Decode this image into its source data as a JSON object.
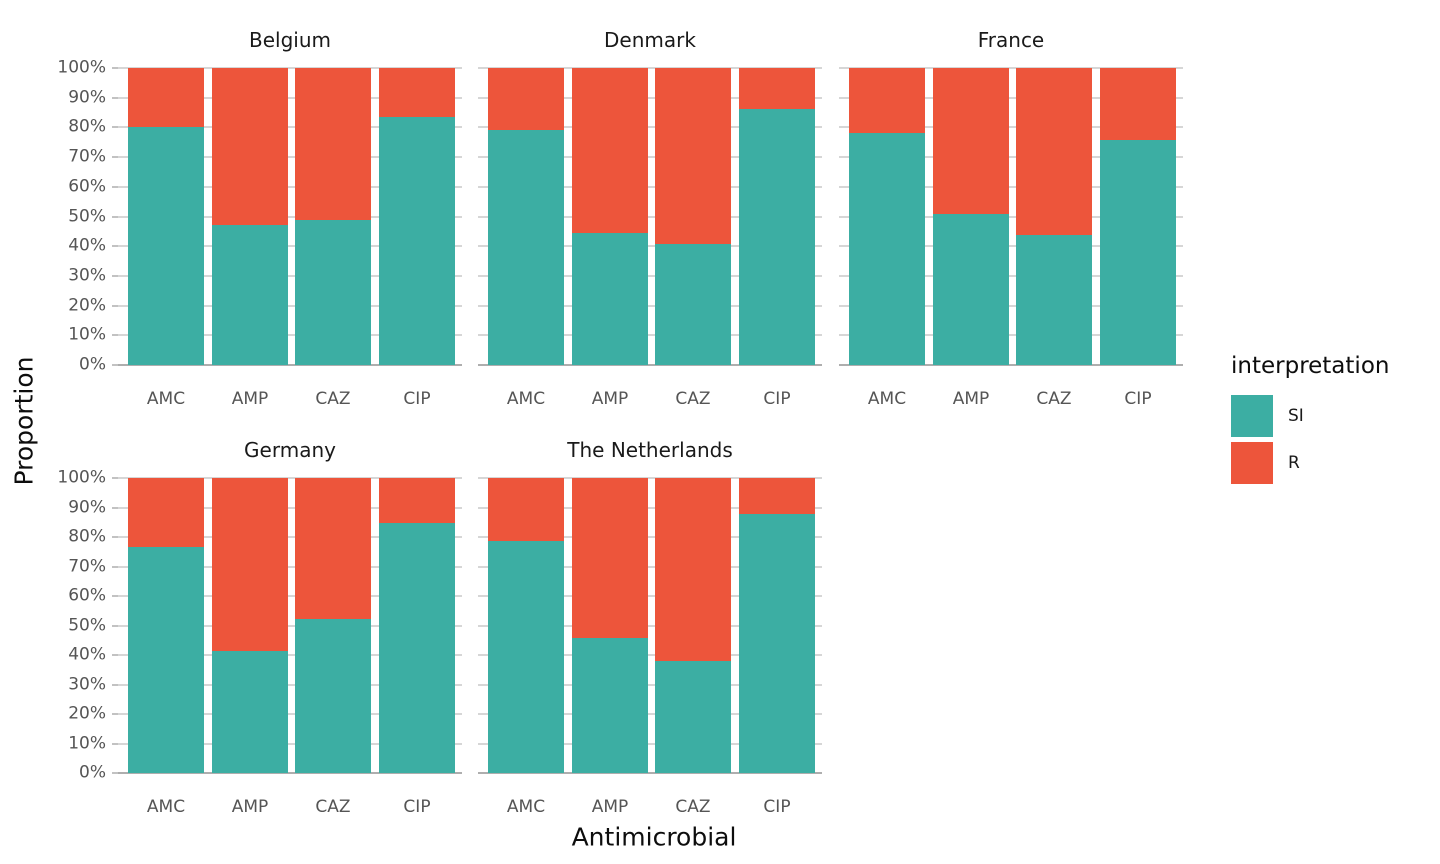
{
  "chart_data": {
    "type": "bar",
    "stacked": true,
    "percent_scale": true,
    "categories": [
      "AMC",
      "AMP",
      "CAZ",
      "CIP"
    ],
    "series_names": [
      "SI",
      "R"
    ],
    "colors": {
      "SI": "#3CAEA3",
      "R": "#ED553B"
    },
    "ylabel": "Proportion",
    "xlabel": "Antimicrobial",
    "ylim": [
      0,
      100
    ],
    "y_tick_labels": [
      "100%",
      "90%",
      "80%",
      "70%",
      "60%",
      "50%",
      "40%",
      "30%",
      "20%",
      "10%",
      "0%"
    ],
    "grid": true,
    "legend": {
      "title": "interpretation",
      "position": "right",
      "items": [
        {
          "label": "SI",
          "color": "#3CAEA3"
        },
        {
          "label": "R",
          "color": "#ED553B"
        }
      ]
    },
    "facets": [
      {
        "title": "Belgium",
        "row": 0,
        "col": 0,
        "series": {
          "SI": [
            80.0,
            47.2,
            48.8,
            83.5
          ],
          "R": [
            20.0,
            52.8,
            51.2,
            16.5
          ]
        }
      },
      {
        "title": "Denmark",
        "row": 0,
        "col": 1,
        "series": {
          "SI": [
            79.1,
            44.5,
            40.8,
            86.1
          ],
          "R": [
            20.9,
            55.5,
            59.2,
            13.9
          ]
        }
      },
      {
        "title": "France",
        "row": 0,
        "col": 2,
        "series": {
          "SI": [
            78.0,
            50.7,
            43.7,
            75.8
          ],
          "R": [
            22.0,
            49.3,
            56.3,
            24.2
          ]
        }
      },
      {
        "title": "Germany",
        "row": 1,
        "col": 0,
        "series": {
          "SI": [
            76.5,
            41.4,
            52.3,
            84.6
          ],
          "R": [
            23.5,
            58.6,
            47.7,
            15.4
          ]
        }
      },
      {
        "title": "The Netherlands",
        "row": 1,
        "col": 1,
        "series": {
          "SI": [
            78.8,
            45.9,
            38.0,
            87.8
          ],
          "R": [
            21.2,
            54.1,
            62.0,
            12.2
          ]
        }
      }
    ]
  }
}
